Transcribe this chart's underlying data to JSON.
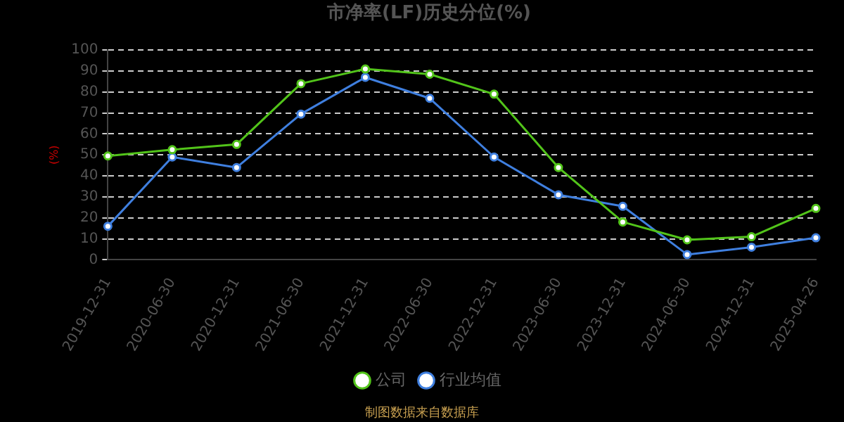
{
  "chart_data": {
    "type": "line",
    "title": "市净率(LF)历史分位(%)",
    "ylabel": "(%)",
    "categories": [
      "2019-12-31",
      "2020-06-30",
      "2020-12-31",
      "2021-06-30",
      "2021-12-31",
      "2022-06-30",
      "2022-12-31",
      "2023-06-30",
      "2023-12-31",
      "2024-06-30",
      "2024-12-31",
      "2025-04-26"
    ],
    "series": [
      {
        "name": "公司",
        "color": "#52c41a",
        "values": [
          49.5,
          52.5,
          55,
          84,
          91,
          88.5,
          79,
          44,
          18,
          9.5,
          11,
          24.5
        ]
      },
      {
        "name": "行业均值",
        "color": "#3f7fdf",
        "values": [
          16,
          49,
          44,
          69.5,
          87,
          77,
          49,
          31,
          25.5,
          2.5,
          6,
          10.5
        ]
      }
    ],
    "ylim": [
      0,
      100
    ],
    "yticks": [
      0,
      10,
      20,
      30,
      40,
      50,
      60,
      70,
      80,
      90,
      100
    ],
    "grid": "y",
    "legend": "bottom",
    "marker": "circle",
    "line_style": "solid",
    "annotations": [
      "制图数据来自数据库"
    ]
  }
}
